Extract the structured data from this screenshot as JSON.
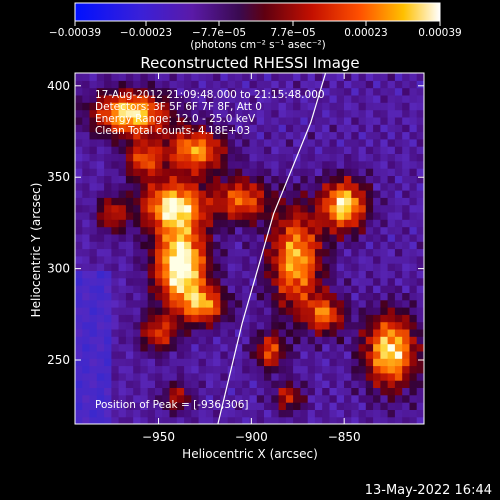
{
  "chart_data": {
    "type": "heatmap",
    "title": "Reconstructed RHESSI Image",
    "xlabel": "Heliocentric X (arcsec)",
    "ylabel": "Heliocentric Y (arcsec)",
    "xlim": [
      -995,
      -807
    ],
    "ylim": [
      215,
      407
    ],
    "x_ticks": [
      -950,
      -900,
      -850
    ],
    "y_ticks": [
      250,
      300,
      350,
      400
    ],
    "colorbar": {
      "colormap": "blue-purple-red-yellow-white",
      "range": [
        -0.00039,
        0.00039
      ],
      "tick_labels": [
        "-0.00039",
        "-0.00023",
        "-7.7e-05",
        "7.7e-05",
        "0.00023",
        "0.00039"
      ],
      "units_label": "(photons cm⁻² s⁻¹ asec⁻²)"
    },
    "annotations": [
      "17-Aug-2012 21:09:48.000 to 21:15:48.000",
      "Detectors: 3F 5F 6F 7F 8F, Att 0",
      "Energy Range: 12.0 - 25.0 keV",
      "Clean    Total counts: 4.18E+03"
    ],
    "peak_label": "Position of Peak = [-936,306]",
    "peak_position": [
      -936,
      306
    ],
    "limb_curve": [
      [
        -918,
        215
      ],
      [
        -905,
        270
      ],
      [
        -888,
        330
      ],
      [
        -868,
        380
      ],
      [
        -860,
        407
      ]
    ]
  },
  "footer": {
    "timestamp": "13-May-2022 16:44"
  }
}
